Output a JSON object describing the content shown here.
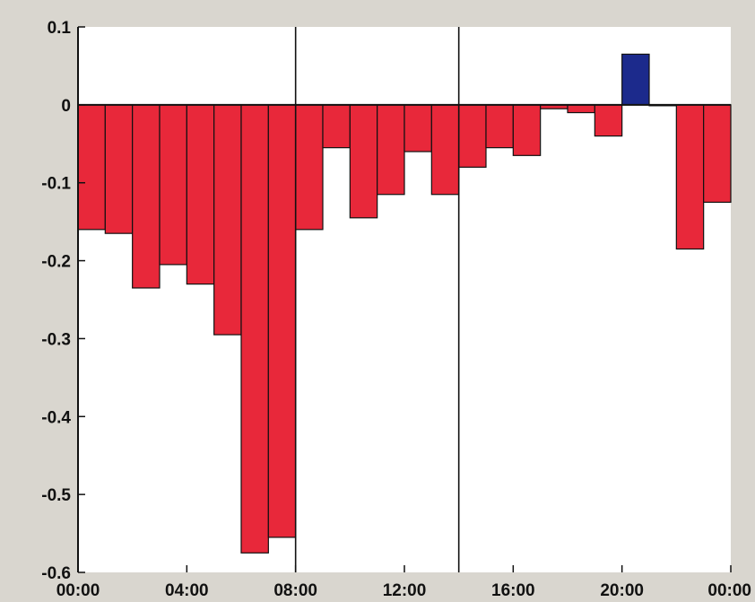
{
  "chart_data": {
    "type": "bar",
    "categories": [
      "00:00",
      "01:00",
      "02:00",
      "03:00",
      "04:00",
      "05:00",
      "06:00",
      "07:00",
      "08:00",
      "09:00",
      "10:00",
      "11:00",
      "12:00",
      "13:00",
      "14:00",
      "15:00",
      "16:00",
      "17:00",
      "18:00",
      "19:00",
      "20:00",
      "21:00",
      "22:00",
      "23:00"
    ],
    "values": [
      -0.16,
      -0.165,
      -0.235,
      -0.205,
      -0.23,
      -0.295,
      -0.575,
      -0.555,
      -0.16,
      -0.055,
      -0.145,
      -0.115,
      -0.06,
      -0.115,
      -0.08,
      -0.055,
      -0.065,
      -0.005,
      -0.01,
      -0.04,
      0.065,
      0.0,
      -0.185,
      -0.125
    ],
    "ylim": [
      -0.6,
      0.1
    ],
    "yticks": [
      "0.1",
      "0",
      "-0.1",
      "-0.2",
      "-0.3",
      "-0.4",
      "-0.5",
      "-0.6"
    ],
    "ytick_values": [
      0.1,
      0,
      -0.1,
      -0.2,
      -0.3,
      -0.4,
      -0.5,
      -0.6
    ],
    "xticks": [
      "00:00",
      "04:00",
      "08:00",
      "12:00",
      "16:00",
      "20:00",
      "00:00"
    ],
    "xtick_hours": [
      0,
      4,
      8,
      12,
      16,
      20,
      24
    ],
    "vertical_lines_hours": [
      8,
      14
    ],
    "colors": {
      "negative": "#e8283a",
      "positive": "#1c2a8c",
      "axis": "#111111",
      "background": "#d9d6cf",
      "plot_area": "#ffffff"
    },
    "grid": false,
    "title": "",
    "xlabel": "",
    "ylabel": ""
  }
}
